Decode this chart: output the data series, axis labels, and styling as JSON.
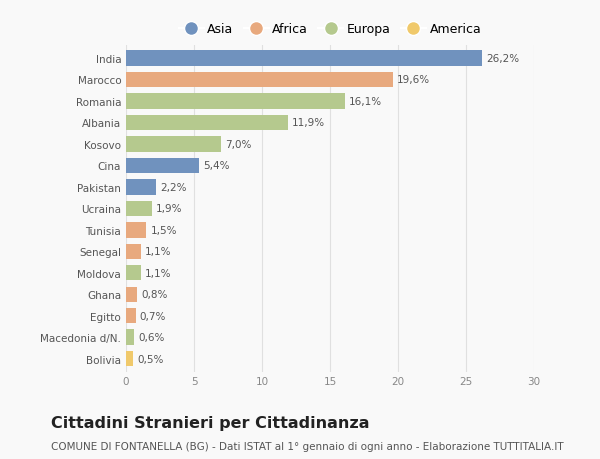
{
  "countries": [
    "India",
    "Marocco",
    "Romania",
    "Albania",
    "Kosovo",
    "Cina",
    "Pakistan",
    "Ucraina",
    "Tunisia",
    "Senegal",
    "Moldova",
    "Ghana",
    "Egitto",
    "Macedonia d/N.",
    "Bolivia"
  ],
  "values": [
    26.2,
    19.6,
    16.1,
    11.9,
    7.0,
    5.4,
    2.2,
    1.9,
    1.5,
    1.1,
    1.1,
    0.8,
    0.7,
    0.6,
    0.5
  ],
  "labels": [
    "26,2%",
    "19,6%",
    "16,1%",
    "11,9%",
    "7,0%",
    "5,4%",
    "2,2%",
    "1,9%",
    "1,5%",
    "1,1%",
    "1,1%",
    "0,8%",
    "0,7%",
    "0,6%",
    "0,5%"
  ],
  "continents": [
    "Asia",
    "Africa",
    "Europa",
    "Europa",
    "Europa",
    "Asia",
    "Asia",
    "Europa",
    "Africa",
    "Africa",
    "Europa",
    "Africa",
    "Africa",
    "Europa",
    "America"
  ],
  "colors": {
    "Asia": "#7092be",
    "Africa": "#e8a97e",
    "Europa": "#b5c98e",
    "America": "#f0c96b"
  },
  "legend_order": [
    "Asia",
    "Africa",
    "Europa",
    "America"
  ],
  "xlim": [
    0,
    30
  ],
  "xticks": [
    0,
    5,
    10,
    15,
    20,
    25,
    30
  ],
  "title": "Cittadini Stranieri per Cittadinanza",
  "subtitle": "COMUNE DI FONTANELLA (BG) - Dati ISTAT al 1° gennaio di ogni anno - Elaborazione TUTTITALIA.IT",
  "bg_color": "#f9f9f9",
  "grid_color": "#e0e0e0",
  "bar_height": 0.72,
  "title_fontsize": 11.5,
  "subtitle_fontsize": 7.5,
  "label_fontsize": 7.5,
  "tick_fontsize": 7.5,
  "legend_fontsize": 9
}
